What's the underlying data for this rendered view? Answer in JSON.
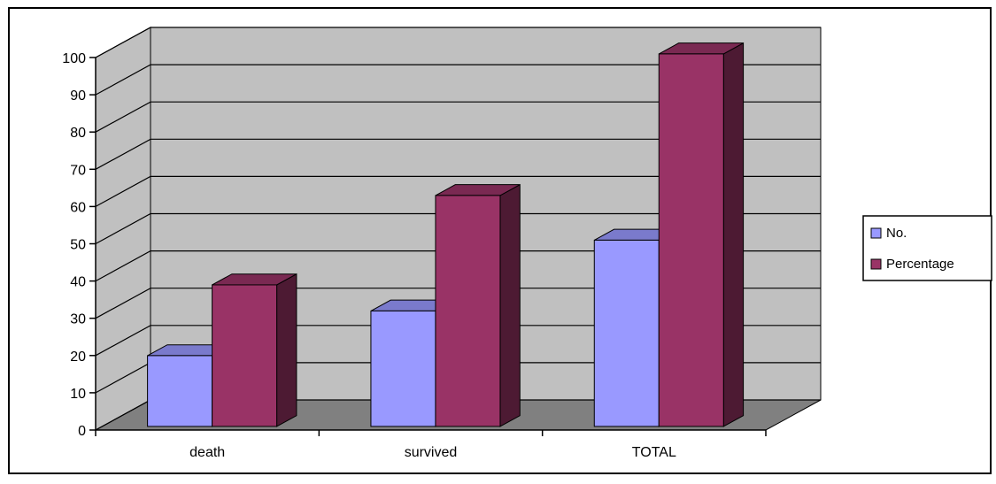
{
  "chart_data": {
    "type": "bar",
    "style": "3d-clustered-column",
    "categories": [
      "death",
      "survived",
      "TOTAL"
    ],
    "series": [
      {
        "name": "No.",
        "values": [
          19,
          31,
          50
        ],
        "color": "#9999ff"
      },
      {
        "name": "Percentage",
        "values": [
          38,
          62,
          100
        ],
        "color": "#993366"
      }
    ],
    "yticks": [
      "0",
      "10",
      "20",
      "30",
      "40",
      "50",
      "60",
      "70",
      "80",
      "90",
      "100"
    ],
    "ylim": [
      0,
      100
    ],
    "title": "",
    "xlabel": "",
    "ylabel": "",
    "grid": true,
    "legend_position": "right",
    "colors": {
      "wall": "#c0c0c0",
      "floor": "#808080",
      "gridline": "#000000"
    }
  }
}
